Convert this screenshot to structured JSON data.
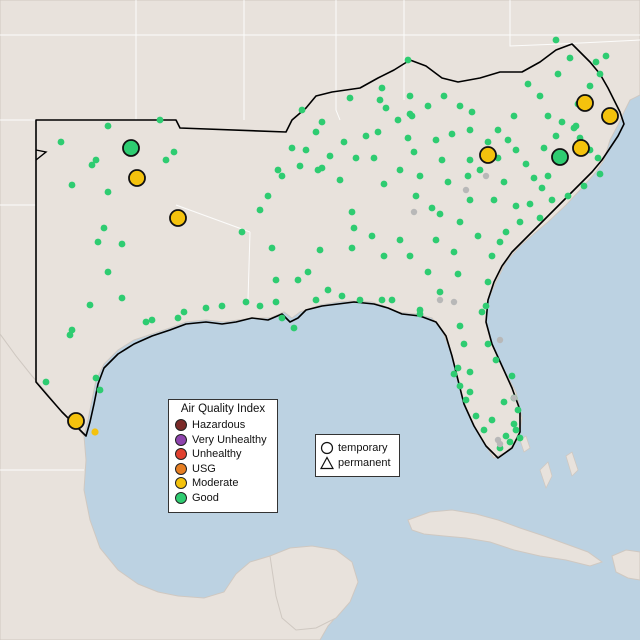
{
  "legend": {
    "title": "Air Quality Index",
    "items": [
      {
        "label": "Hazardous",
        "color": "#7b2a28"
      },
      {
        "label": "Very Unhealthy",
        "color": "#8e44ad"
      },
      {
        "label": "Unhealthy",
        "color": "#e0402f"
      },
      {
        "label": "USG",
        "color": "#e67e22"
      },
      {
        "label": "Moderate",
        "color": "#f4c20d"
      },
      {
        "label": "Good",
        "color": "#2ecc71"
      }
    ]
  },
  "shape_legend": {
    "items": [
      {
        "label": "temporary",
        "shape": "circle"
      },
      {
        "label": "permanent",
        "shape": "triangle"
      }
    ]
  },
  "colors": {
    "ocean": "#bcd2e2",
    "land": "#e8e2dc",
    "good": "#2ecc71",
    "moderate": "#f4c20d",
    "no_data": "#b8b8b8",
    "region_outline": "#000000"
  }
}
